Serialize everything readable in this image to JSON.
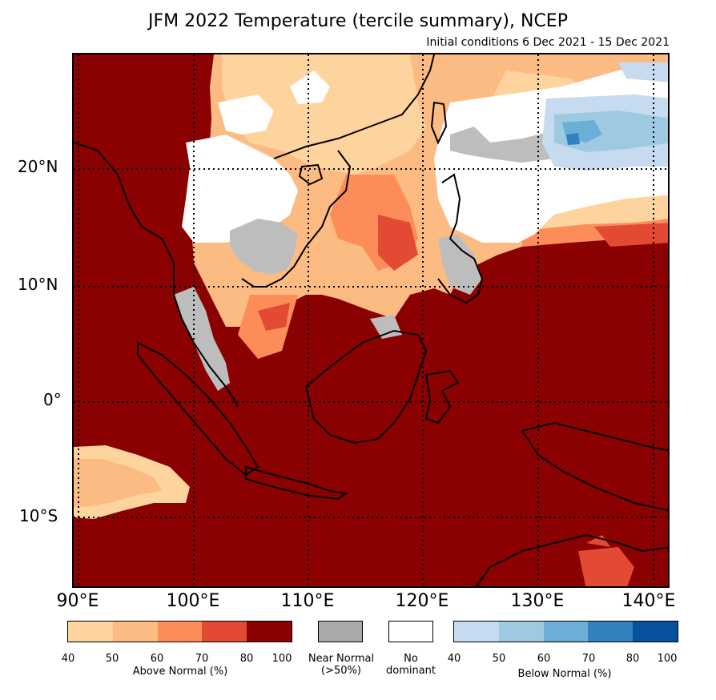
{
  "title": "JFM 2022 Temperature (tercile summary), NCEP",
  "subtitle": "Initial conditions 6 Dec 2021 - 15 Dec 2021",
  "map": {
    "lat_labels": [
      "20°N",
      "10°N",
      "0°",
      "10°S"
    ],
    "lon_labels": [
      "90°E",
      "100°E",
      "110°E",
      "120°E",
      "130°E",
      "140°E"
    ],
    "colors": {
      "above": [
        "#fdd49e",
        "#fdbb84",
        "#fc8d59",
        "#e34a33",
        "#8b0000"
      ],
      "below": [
        "#c6dbef",
        "#9ecae1",
        "#6baed6",
        "#3182bd",
        "#08519c"
      ],
      "near_normal": "#bdbdbd",
      "no_dominant": "#ffffff"
    }
  },
  "legend": {
    "above": {
      "ticks": [
        "40",
        "50",
        "60",
        "70",
        "80",
        "100"
      ],
      "caption": "Above Normal (%)"
    },
    "near": {
      "caption_line1": "Near Normal",
      "caption_line2": "(>50%)"
    },
    "nodom": {
      "caption_line1": "No",
      "caption_line2": "dominant"
    },
    "below": {
      "ticks": [
        "40",
        "50",
        "60",
        "70",
        "80",
        "100"
      ],
      "caption": "Below Normal (%)"
    }
  }
}
